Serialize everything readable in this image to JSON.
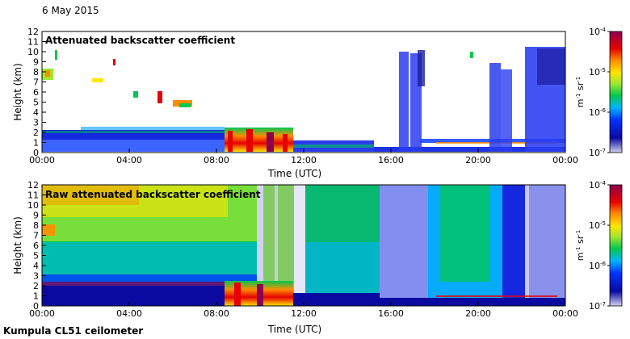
{
  "date": "6 May 2015",
  "footer": "Kumpula CL51 ceilometer",
  "colors": {
    "background": "#ffffff",
    "axis": "#000000",
    "colormap": [
      "#d2d2f0",
      "#0a0aa0",
      "#0032ff",
      "#00b4ff",
      "#00c850",
      "#a0e632",
      "#ffe600",
      "#ff8c00",
      "#e60000",
      "#8c0050"
    ]
  },
  "chart_data": [
    {
      "type": "heatmap",
      "title": "Attenuated backscatter coefficient",
      "xlabel": "Time (UTC)",
      "ylabel": "Height (km)",
      "xlim": [
        0,
        24
      ],
      "ylim": [
        0,
        12
      ],
      "x_tick_values": [
        0,
        4,
        8,
        12,
        16,
        20,
        24
      ],
      "x_tick_labels": [
        "00:00",
        "04:00",
        "08:00",
        "12:00",
        "16:00",
        "20:00",
        "00:00"
      ],
      "y_ticks": [
        0,
        1,
        2,
        3,
        4,
        5,
        6,
        7,
        8,
        9,
        10,
        11,
        12
      ],
      "colorbar": {
        "unit_base_1": "m",
        "unit_exp_1": "-1",
        "unit_base_2": " sr",
        "unit_exp_2": "-1",
        "scale": "log",
        "ticks": [
          {
            "base": "10",
            "exp": "-4",
            "value": 0.0001
          },
          {
            "base": "10",
            "exp": "-5",
            "value": 1e-05
          },
          {
            "base": "10",
            "exp": "-6",
            "value": 1e-06
          },
          {
            "base": "10",
            "exp": "-7",
            "value": 1e-07
          }
        ]
      }
    },
    {
      "type": "heatmap",
      "title": "Raw attenuated backscatter coefficient",
      "xlabel": "Time (UTC)",
      "ylabel": "Height (km)",
      "xlim": [
        0,
        24
      ],
      "ylim": [
        0,
        12
      ],
      "x_tick_values": [
        0,
        4,
        8,
        12,
        16,
        20,
        24
      ],
      "x_tick_labels": [
        "00:00",
        "04:00",
        "08:00",
        "12:00",
        "16:00",
        "20:00",
        "00:00"
      ],
      "y_ticks": [
        0,
        1,
        2,
        3,
        4,
        5,
        6,
        7,
        8,
        9,
        10,
        11,
        12
      ],
      "colorbar": {
        "unit_base_1": "m",
        "unit_exp_1": "-1",
        "unit_base_2": " sr",
        "unit_exp_2": "-1",
        "scale": "log",
        "ticks": [
          {
            "base": "10",
            "exp": "-4",
            "value": 0.0001
          },
          {
            "base": "10",
            "exp": "-5",
            "value": 1e-05
          },
          {
            "base": "10",
            "exp": "-6",
            "value": 1e-06
          },
          {
            "base": "10",
            "exp": "-7",
            "value": 1e-07
          }
        ]
      }
    }
  ]
}
